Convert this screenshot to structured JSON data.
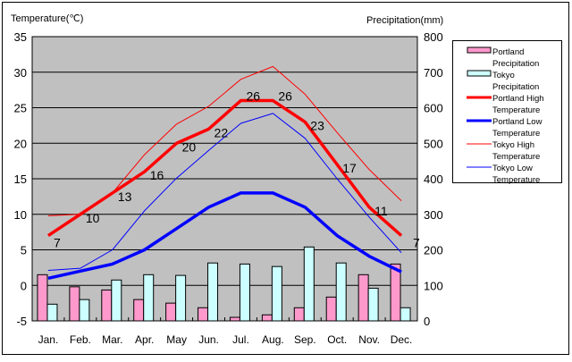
{
  "chart_data": {
    "type": "bar+line",
    "left_axis_label": "Temperature(℃)",
    "right_axis_label": "Precipitation(mm)",
    "left_ylim": [
      -5,
      35
    ],
    "left_ticks": [
      35,
      30,
      25,
      20,
      15,
      10,
      5,
      0,
      -5
    ],
    "right_ylim": [
      0,
      800
    ],
    "right_ticks": [
      800,
      700,
      600,
      500,
      400,
      300,
      200,
      100,
      0
    ],
    "grid": true,
    "legend_position": "right",
    "categories": [
      "Jan.",
      "Feb.",
      "Mar.",
      "Apr.",
      "May",
      "Jun.",
      "Jul.",
      "Aug.",
      "Sep.",
      "Oct.",
      "Nov.",
      "Dec."
    ],
    "bar_series": [
      {
        "name": "Portland Precipitation",
        "legend": [
          "Portland",
          "Precipitation"
        ],
        "color": "#ff99cc",
        "axis": "right",
        "values": [
          130,
          96,
          87,
          60,
          50,
          37,
          10,
          17,
          37,
          67,
          130,
          160
        ]
      },
      {
        "name": "Tokyo Precipitation",
        "legend": [
          "Tokyo",
          "Precipitation"
        ],
        "color": "#ccffff",
        "axis": "right",
        "values": [
          47,
          60,
          115,
          130,
          128,
          163,
          160,
          153,
          208,
          163,
          92,
          37
        ]
      }
    ],
    "line_series": [
      {
        "name": "Portland High Temperature",
        "legend": [
          "Portland High",
          "Temperature"
        ],
        "color": "#ff0000",
        "width": "thick",
        "axis": "left",
        "values": [
          7,
          10,
          13,
          16,
          20,
          22,
          26,
          26,
          23,
          17,
          11,
          7
        ],
        "data_labels": [
          "7",
          "10",
          "13",
          "16",
          "20",
          "22",
          "26",
          "26",
          "23",
          "17",
          "11",
          "7"
        ]
      },
      {
        "name": "Portland Low Temperature",
        "legend": [
          "Portland Low",
          "Temperature"
        ],
        "color": "#0000ff",
        "width": "thick",
        "axis": "left",
        "values": [
          1,
          2,
          3,
          5,
          8,
          11,
          13,
          13,
          11,
          7,
          4.1,
          1.9
        ]
      },
      {
        "name": "Tokyo High Temperature",
        "legend": [
          "Tokyo High",
          "Temperature"
        ],
        "color": "#ff0000",
        "width": "thin",
        "axis": "left",
        "values": [
          9.8,
          10,
          13,
          18.4,
          22.7,
          25.2,
          29,
          30.8,
          26.9,
          21.5,
          16.3,
          11.9
        ]
      },
      {
        "name": "Tokyo Low Temperature",
        "legend": [
          "Tokyo Low",
          "Temperature"
        ],
        "color": "#0000ff",
        "width": "thin",
        "axis": "left",
        "values": [
          2.1,
          2.4,
          5,
          10.5,
          15.1,
          19,
          22.8,
          24.2,
          20.7,
          15,
          9.6,
          4.6
        ]
      }
    ]
  }
}
